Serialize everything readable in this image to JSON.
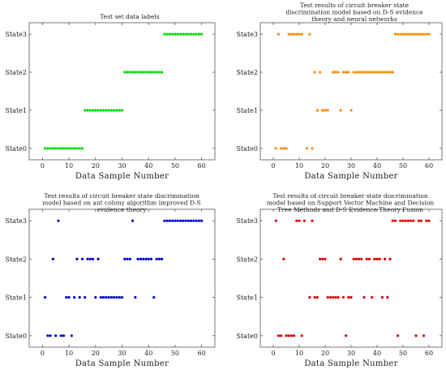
{
  "chart_data": [
    {
      "type": "scatter",
      "title": "Test set data labels",
      "xlabel": "Data Sample Number",
      "ylabel": "",
      "xlim": [
        -5,
        65
      ],
      "xticks": [
        0,
        10,
        20,
        30,
        40,
        50,
        60
      ],
      "xtick_labels": [
        "0",
        "10",
        "20",
        "30",
        "40",
        "50",
        "60"
      ],
      "categories": [
        "State0",
        "State1",
        "State2",
        "State3"
      ],
      "grid": false,
      "series": [
        {
          "color": "#00dd00",
          "points": [
            [
              1,
              0
            ],
            [
              2,
              0
            ],
            [
              3,
              0
            ],
            [
              4,
              0
            ],
            [
              5,
              0
            ],
            [
              6,
              0
            ],
            [
              7,
              0
            ],
            [
              8,
              0
            ],
            [
              9,
              0
            ],
            [
              10,
              0
            ],
            [
              11,
              0
            ],
            [
              12,
              0
            ],
            [
              13,
              0
            ],
            [
              14,
              0
            ],
            [
              15,
              0
            ],
            [
              16,
              1
            ],
            [
              17,
              1
            ],
            [
              18,
              1
            ],
            [
              19,
              1
            ],
            [
              20,
              1
            ],
            [
              21,
              1
            ],
            [
              22,
              1
            ],
            [
              23,
              1
            ],
            [
              24,
              1
            ],
            [
              25,
              1
            ],
            [
              26,
              1
            ],
            [
              27,
              1
            ],
            [
              28,
              1
            ],
            [
              29,
              1
            ],
            [
              30,
              1
            ],
            [
              31,
              2
            ],
            [
              32,
              2
            ],
            [
              33,
              2
            ],
            [
              34,
              2
            ],
            [
              35,
              2
            ],
            [
              36,
              2
            ],
            [
              37,
              2
            ],
            [
              38,
              2
            ],
            [
              39,
              2
            ],
            [
              40,
              2
            ],
            [
              41,
              2
            ],
            [
              42,
              2
            ],
            [
              43,
              2
            ],
            [
              44,
              2
            ],
            [
              45,
              2
            ],
            [
              46,
              3
            ],
            [
              47,
              3
            ],
            [
              48,
              3
            ],
            [
              49,
              3
            ],
            [
              50,
              3
            ],
            [
              51,
              3
            ],
            [
              52,
              3
            ],
            [
              53,
              3
            ],
            [
              54,
              3
            ],
            [
              55,
              3
            ],
            [
              56,
              3
            ],
            [
              57,
              3
            ],
            [
              58,
              3
            ],
            [
              59,
              3
            ],
            [
              60,
              3
            ]
          ]
        }
      ]
    },
    {
      "type": "scatter",
      "title": "Test results of circuit breaker state discrimination model based on D-S evidence theory and neural networks",
      "xlabel": "Data Sample Number",
      "ylabel": "",
      "xlim": [
        -5,
        65
      ],
      "xticks": [
        0,
        10,
        20,
        30,
        40,
        50,
        60
      ],
      "xtick_labels": [
        "0",
        "10",
        "20",
        "30",
        "40",
        "50",
        "60"
      ],
      "categories": [
        "State0",
        "State1",
        "State2",
        "State3"
      ],
      "grid": false,
      "series": [
        {
          "color": "#ff8c00",
          "points": [
            [
              1,
              0
            ],
            [
              3,
              0
            ],
            [
              4,
              0
            ],
            [
              5,
              0
            ],
            [
              13,
              0
            ],
            [
              15,
              0
            ],
            [
              17,
              1
            ],
            [
              19,
              1
            ],
            [
              20,
              1
            ],
            [
              21,
              1
            ],
            [
              26,
              1
            ],
            [
              30,
              1
            ],
            [
              16,
              2
            ],
            [
              18,
              2
            ],
            [
              23,
              2
            ],
            [
              24,
              2
            ],
            [
              25,
              2
            ],
            [
              27,
              2
            ],
            [
              28,
              2
            ],
            [
              29,
              2
            ],
            [
              31,
              2
            ],
            [
              32,
              2
            ],
            [
              33,
              2
            ],
            [
              34,
              2
            ],
            [
              35,
              2
            ],
            [
              36,
              2
            ],
            [
              37,
              2
            ],
            [
              38,
              2
            ],
            [
              39,
              2
            ],
            [
              40,
              2
            ],
            [
              41,
              2
            ],
            [
              42,
              2
            ],
            [
              43,
              2
            ],
            [
              44,
              2
            ],
            [
              45,
              2
            ],
            [
              46,
              2
            ],
            [
              2,
              3
            ],
            [
              6,
              3
            ],
            [
              7,
              3
            ],
            [
              8,
              3
            ],
            [
              9,
              3
            ],
            [
              10,
              3
            ],
            [
              11,
              3
            ],
            [
              14,
              3
            ],
            [
              47,
              3
            ],
            [
              48,
              3
            ],
            [
              49,
              3
            ],
            [
              50,
              3
            ],
            [
              51,
              3
            ],
            [
              52,
              3
            ],
            [
              53,
              3
            ],
            [
              54,
              3
            ],
            [
              55,
              3
            ],
            [
              56,
              3
            ],
            [
              57,
              3
            ],
            [
              58,
              3
            ],
            [
              59,
              3
            ],
            [
              60,
              3
            ]
          ]
        }
      ]
    },
    {
      "type": "scatter",
      "title": "Test results of circuit breaker state discrimination model based on ant colony algorithm improved D-S evidence theory",
      "xlabel": "Data Sample Number",
      "ylabel": "",
      "xlim": [
        -5,
        65
      ],
      "xticks": [
        0,
        10,
        20,
        30,
        40,
        50,
        60
      ],
      "xtick_labels": [
        "0",
        "10",
        "20",
        "30",
        "40",
        "50",
        "60"
      ],
      "categories": [
        "State0",
        "State1",
        "State2",
        "State3"
      ],
      "grid": false,
      "series": [
        {
          "color": "#0000cc",
          "points": [
            [
              2,
              0
            ],
            [
              3,
              0
            ],
            [
              5,
              0
            ],
            [
              7,
              0
            ],
            [
              8,
              0
            ],
            [
              11,
              0
            ],
            [
              1,
              1
            ],
            [
              9,
              1
            ],
            [
              10,
              1
            ],
            [
              12,
              1
            ],
            [
              14,
              1
            ],
            [
              16,
              1
            ],
            [
              20,
              1
            ],
            [
              22,
              1
            ],
            [
              23,
              1
            ],
            [
              24,
              1
            ],
            [
              25,
              1
            ],
            [
              26,
              1
            ],
            [
              27,
              1
            ],
            [
              28,
              1
            ],
            [
              29,
              1
            ],
            [
              30,
              1
            ],
            [
              35,
              1
            ],
            [
              42,
              1
            ],
            [
              4,
              2
            ],
            [
              13,
              2
            ],
            [
              15,
              2
            ],
            [
              17,
              2
            ],
            [
              18,
              2
            ],
            [
              19,
              2
            ],
            [
              21,
              2
            ],
            [
              31,
              2
            ],
            [
              32,
              2
            ],
            [
              33,
              2
            ],
            [
              36,
              2
            ],
            [
              37,
              2
            ],
            [
              38,
              2
            ],
            [
              39,
              2
            ],
            [
              40,
              2
            ],
            [
              41,
              2
            ],
            [
              43,
              2
            ],
            [
              44,
              2
            ],
            [
              45,
              2
            ],
            [
              6,
              3
            ],
            [
              34,
              3
            ],
            [
              46,
              3
            ],
            [
              47,
              3
            ],
            [
              48,
              3
            ],
            [
              49,
              3
            ],
            [
              50,
              3
            ],
            [
              51,
              3
            ],
            [
              52,
              3
            ],
            [
              53,
              3
            ],
            [
              54,
              3
            ],
            [
              55,
              3
            ],
            [
              56,
              3
            ],
            [
              57,
              3
            ],
            [
              58,
              3
            ],
            [
              59,
              3
            ],
            [
              60,
              3
            ]
          ]
        }
      ]
    },
    {
      "type": "scatter",
      "title": "Test results of circuit breaker state discrimination model based on Support Vector Machine and Decision Tree Methods and D-S Evidence Theory Fusion",
      "xlabel": "Data Sample Number",
      "ylabel": "",
      "xlim": [
        -5,
        65
      ],
      "xticks": [
        0,
        10,
        20,
        30,
        40,
        50,
        60
      ],
      "xtick_labels": [
        "0",
        "10",
        "20",
        "30",
        "40",
        "50",
        "60"
      ],
      "categories": [
        "State0",
        "State1",
        "State2",
        "State3"
      ],
      "grid": false,
      "series": [
        {
          "color": "#dd0000",
          "points": [
            [
              2,
              0
            ],
            [
              3,
              0
            ],
            [
              5,
              0
            ],
            [
              6,
              0
            ],
            [
              7,
              0
            ],
            [
              8,
              0
            ],
            [
              11,
              0
            ],
            [
              28,
              0
            ],
            [
              48,
              0
            ],
            [
              55,
              0
            ],
            [
              58,
              0
            ],
            [
              14,
              1
            ],
            [
              16,
              1
            ],
            [
              17,
              1
            ],
            [
              21,
              1
            ],
            [
              22,
              1
            ],
            [
              23,
              1
            ],
            [
              24,
              1
            ],
            [
              25,
              1
            ],
            [
              27,
              1
            ],
            [
              29,
              1
            ],
            [
              30,
              1
            ],
            [
              35,
              1
            ],
            [
              38,
              1
            ],
            [
              42,
              1
            ],
            [
              44,
              1
            ],
            [
              4,
              2
            ],
            [
              18,
              2
            ],
            [
              19,
              2
            ],
            [
              20,
              2
            ],
            [
              26,
              2
            ],
            [
              31,
              2
            ],
            [
              32,
              2
            ],
            [
              33,
              2
            ],
            [
              34,
              2
            ],
            [
              36,
              2
            ],
            [
              37,
              2
            ],
            [
              39,
              2
            ],
            [
              40,
              2
            ],
            [
              41,
              2
            ],
            [
              43,
              2
            ],
            [
              45,
              2
            ],
            [
              1,
              3
            ],
            [
              9,
              3
            ],
            [
              10,
              3
            ],
            [
              12,
              3
            ],
            [
              15,
              3
            ],
            [
              46,
              3
            ],
            [
              47,
              3
            ],
            [
              49,
              3
            ],
            [
              50,
              3
            ],
            [
              51,
              3
            ],
            [
              52,
              3
            ],
            [
              53,
              3
            ],
            [
              54,
              3
            ],
            [
              56,
              3
            ],
            [
              57,
              3
            ],
            [
              59,
              3
            ],
            [
              60,
              3
            ]
          ]
        }
      ]
    }
  ]
}
